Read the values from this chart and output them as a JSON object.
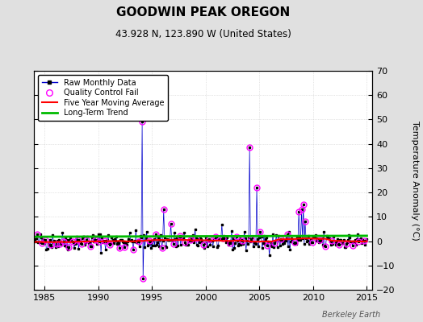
{
  "title": "GOODWIN PEAK OREGON",
  "subtitle": "43.928 N, 123.890 W (United States)",
  "ylabel": "Temperature Anomaly (°C)",
  "watermark": "Berkeley Earth",
  "xlim": [
    1984.0,
    2015.5
  ],
  "ylim": [
    -20,
    70
  ],
  "yticks": [
    -20,
    -10,
    0,
    10,
    20,
    30,
    40,
    50,
    60,
    70
  ],
  "xticks": [
    1985,
    1990,
    1995,
    2000,
    2005,
    2010,
    2015
  ],
  "background_color": "#e0e0e0",
  "plot_bg_color": "#ffffff",
  "raw_color": "#0000cc",
  "qc_color": "#ff00ff",
  "moving_avg_color": "#ff0000",
  "trend_color": "#00bb00",
  "seed": 42,
  "n_months": 372,
  "start_year": 1984.083,
  "spike1_idx": 120,
  "spike1_val": 49.0,
  "spike2_idx": 121,
  "spike2_val": -15.5,
  "spike3_idx": 144,
  "spike3_val": 13.0,
  "spike4_idx": 152,
  "spike4_val": 7.0,
  "spike5_idx": 240,
  "spike5_val": 38.5,
  "spike6_idx": 248,
  "spike6_val": 22.0,
  "spike7_idx": 295,
  "spike7_val": 12.0,
  "spike8_idx": 300,
  "spike8_val": 15.0,
  "extra_spike1_idx": 298,
  "extra_spike1_val": 13.0,
  "extra_spike2_idx": 302,
  "extra_spike2_val": 8.0,
  "trend_y0": 1.8,
  "trend_y1": 2.2
}
